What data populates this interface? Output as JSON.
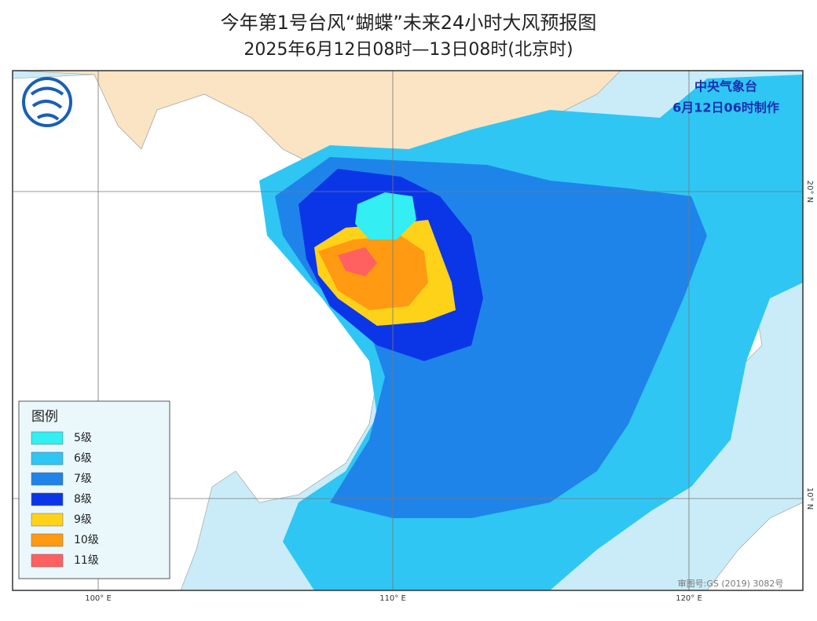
{
  "header": {
    "title": "今年第1号台风“蝴蝶”未来24小时大风预报图",
    "subtitle": "2025年6月12日08时—13日08时(北京时)"
  },
  "issuer": {
    "agency": "中央气象台",
    "issued": "6月12日06时制作"
  },
  "legend": {
    "title": "图例",
    "items": [
      {
        "label": "5级",
        "color": "#33eef2"
      },
      {
        "label": "6级",
        "color": "#2fc6f4"
      },
      {
        "label": "7级",
        "color": "#1f84ea"
      },
      {
        "label": "8级",
        "color": "#0b36e8"
      },
      {
        "label": "9级",
        "color": "#ffd21a"
      },
      {
        "label": "10级",
        "color": "#ff9a12"
      },
      {
        "label": "11级",
        "color": "#ff6060"
      }
    ]
  },
  "axes": {
    "longitudes": [
      "100° E",
      "110° E",
      "120° E"
    ],
    "latitudes": [
      "20° N",
      "10° N"
    ]
  },
  "footer": {
    "approval": "审图号:GS (2019) 3082号"
  }
}
